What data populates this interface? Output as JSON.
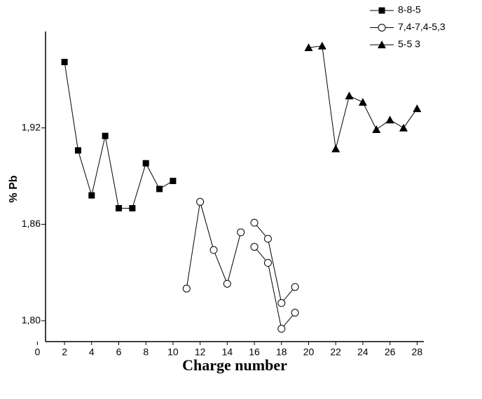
{
  "chart_data": {
    "type": "line",
    "xlabel": "Charge number",
    "ylabel": "% Pb",
    "xlim": [
      0.6,
      28.5
    ],
    "xticks": [
      0,
      2,
      4,
      6,
      8,
      10,
      12,
      14,
      16,
      18,
      20,
      22,
      24,
      26,
      28
    ],
    "ylim": [
      1.787,
      1.98
    ],
    "yticks": [
      {
        "value": 1.8,
        "label": "1,80"
      },
      {
        "value": 1.86,
        "label": "1,86"
      },
      {
        "value": 1.92,
        "label": "1,92"
      }
    ],
    "legend": "top-right",
    "series": [
      {
        "name": "8-8-5",
        "color": "#000000",
        "marker": "square",
        "x": [
          2,
          3,
          4,
          5,
          6,
          7,
          8,
          9,
          10
        ],
        "values": [
          1.961,
          1.906,
          1.878,
          1.915,
          1.87,
          1.87,
          1.898,
          1.882,
          1.887
        ]
      },
      {
        "name": "7,4-7,4-5,3",
        "color": "#000000",
        "marker": "open-circle",
        "x": [
          11,
          12,
          13,
          14,
          15,
          null,
          16,
          17,
          18,
          19,
          null,
          16,
          17,
          18,
          19
        ],
        "values": [
          1.82,
          1.874,
          1.844,
          1.823,
          1.855,
          null,
          1.861,
          1.851,
          1.811,
          1.821,
          null,
          1.846,
          1.836,
          1.795,
          1.805
        ]
      },
      {
        "name": "5-5 3",
        "color": "#000000",
        "marker": "triangle",
        "x": [
          20,
          21,
          22,
          23,
          24,
          25,
          26,
          27,
          28
        ],
        "values": [
          1.97,
          1.971,
          1.907,
          1.94,
          1.936,
          1.919,
          1.925,
          1.92,
          1.932
        ]
      }
    ]
  }
}
